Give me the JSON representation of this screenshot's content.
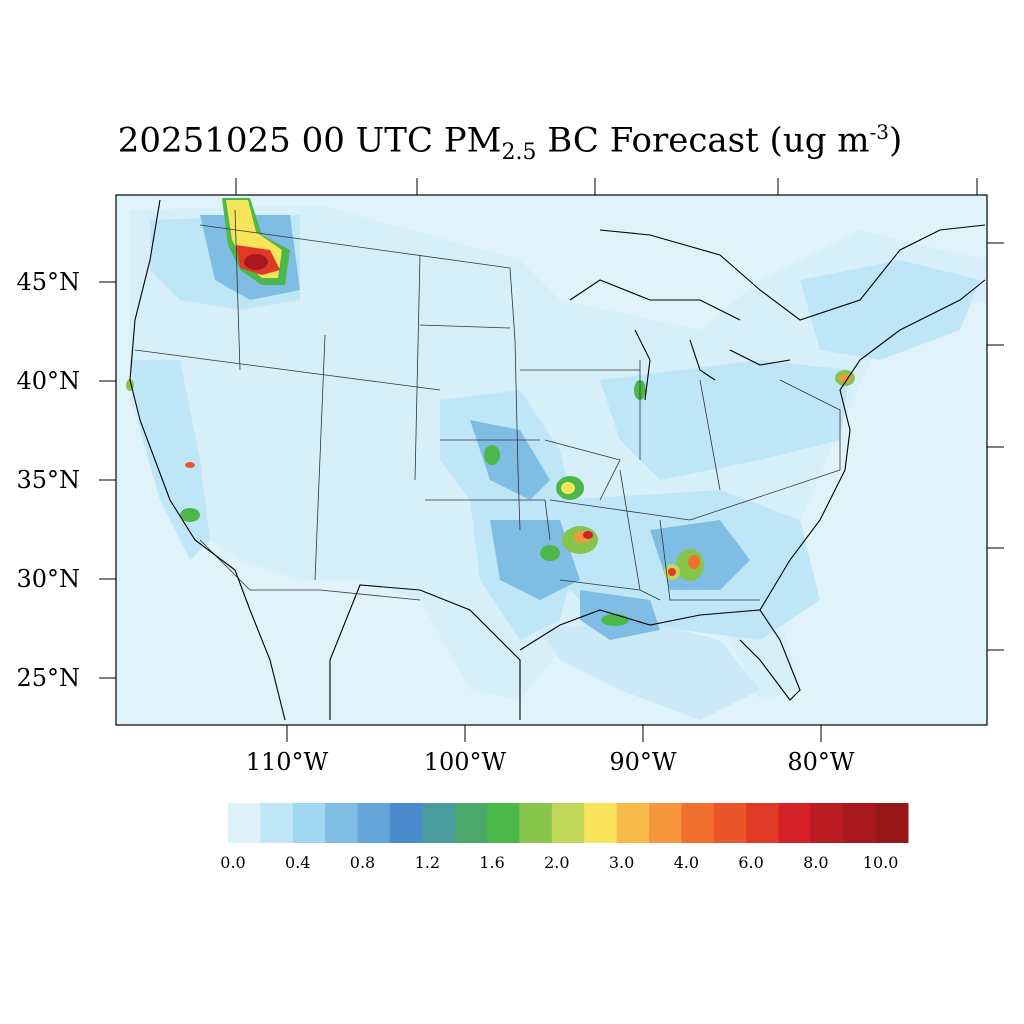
{
  "title": {
    "main": "20251025 00 UTC PM",
    "subscript": "2.5",
    "after_sub": " BC Forecast (ug m",
    "superscript": "-3",
    "close": ")"
  },
  "map": {
    "lat_labels": [
      "45°N",
      "40°N",
      "35°N",
      "30°N",
      "25°N"
    ],
    "lon_labels": [
      "110°W",
      "100°W",
      "90°W",
      "80°W"
    ],
    "ocean_color": "#e0f3fb"
  },
  "colorbar": {
    "colors": [
      "#dff2fa",
      "#bfe6f7",
      "#a0d8f2",
      "#80bde5",
      "#63a5d8",
      "#4a8ccb",
      "#4a9b9e",
      "#4ca76a",
      "#4cb84a",
      "#86c54a",
      "#c1d75a",
      "#f7e45a",
      "#f7bb4a",
      "#f6963d",
      "#f2702f",
      "#ea552a",
      "#e03a27",
      "#d42027",
      "#bb1b23",
      "#a9181f",
      "#951717"
    ],
    "tick_labels": [
      "0.0",
      "0.4",
      "0.8",
      "1.2",
      "1.6",
      "2.0",
      "3.0",
      "4.0",
      "6.0",
      "8.0",
      "10.0"
    ]
  }
}
